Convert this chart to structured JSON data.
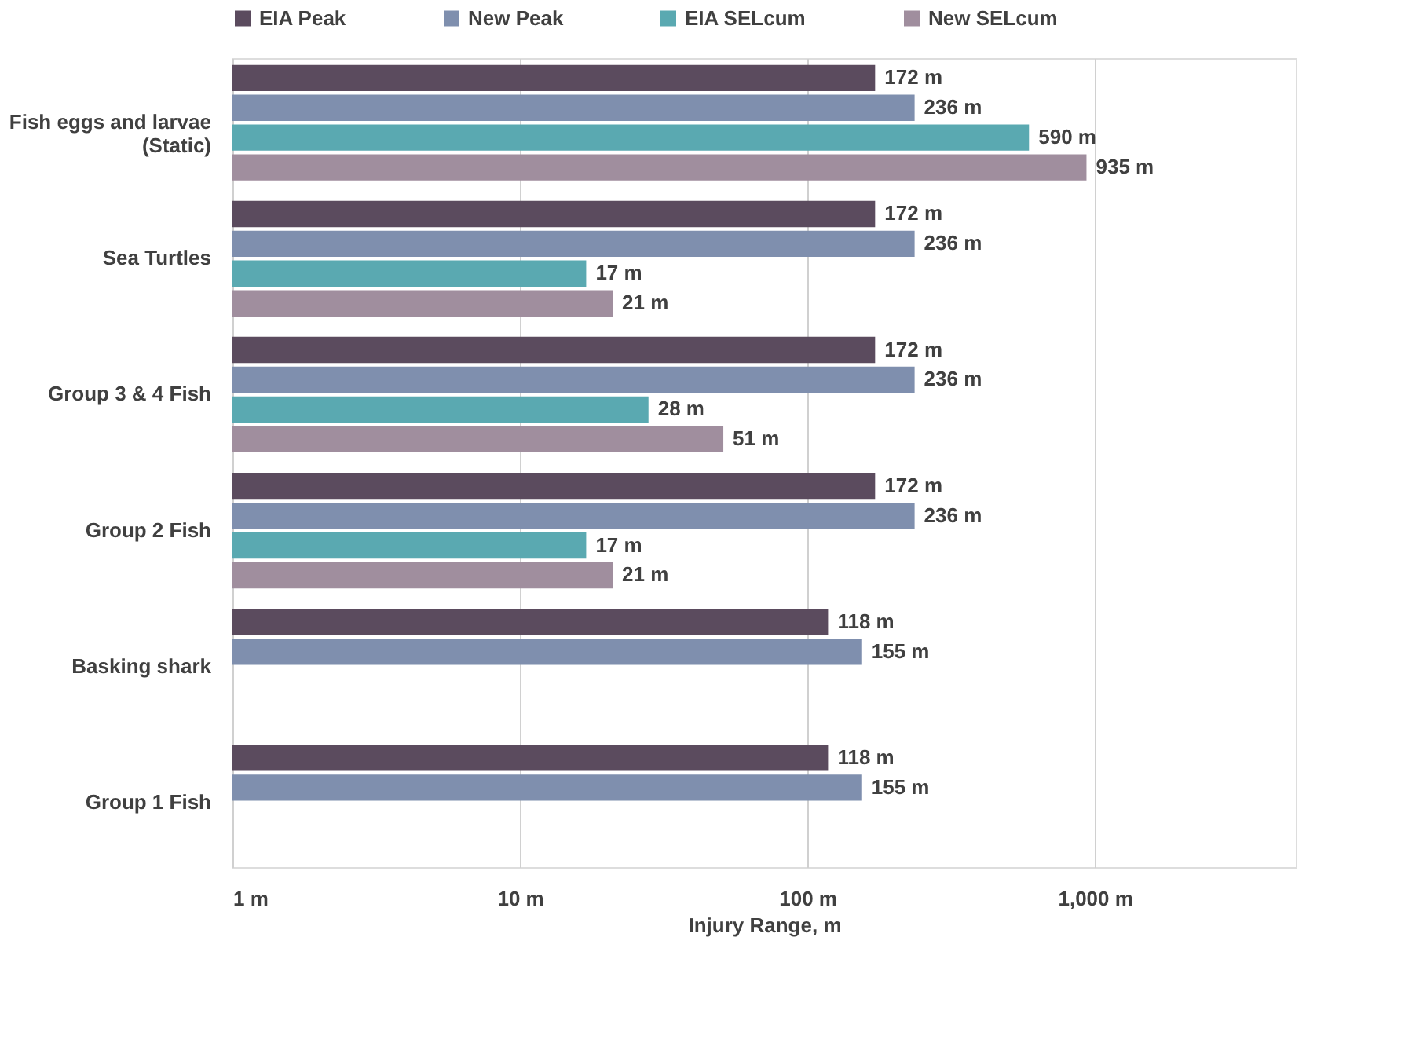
{
  "chart_data": {
    "type": "bar",
    "orientation": "horizontal",
    "xlabel": "Injury  Range, m",
    "log": "x",
    "categories": [
      "Fish eggs and larvae (Static)",
      "Sea Turtles",
      "Group 3 & 4 Fish",
      "Group 2 Fish",
      "Basking shark",
      "Group 1 Fish"
    ],
    "series": [
      {
        "name": "EIA Peak",
        "color": "#5b4b5e",
        "values": [
          172,
          172,
          172,
          172,
          118,
          118
        ],
        "value_labels": [
          "172 m",
          "172 m",
          "172 m",
          "172 m",
          "118 m",
          "118 m"
        ]
      },
      {
        "name": "New Peak",
        "color": "#7f8fae",
        "values": [
          236,
          236,
          236,
          236,
          155,
          155
        ],
        "value_labels": [
          "236 m",
          "236 m",
          "236 m",
          "236 m",
          "155 m",
          "155 m"
        ]
      },
      {
        "name": "EIA SELcum",
        "color": "#5aa9b1",
        "values": [
          590,
          17,
          28,
          17,
          null,
          null
        ],
        "value_labels": [
          "590 m",
          "17 m",
          "28 m",
          "17 m",
          null,
          null
        ]
      },
      {
        "name": "New SELcum",
        "color": "#a08e9e",
        "values": [
          935,
          21,
          51,
          21,
          null,
          null
        ],
        "value_labels": [
          "935 m",
          "21 m",
          "51 m",
          "21 m",
          null,
          null
        ]
      }
    ],
    "xlim": [
      1,
      5000
    ],
    "xticks": [
      {
        "value": 1,
        "label": "1 m"
      },
      {
        "value": 10,
        "label": "10 m"
      },
      {
        "value": 100,
        "label": "100 m"
      },
      {
        "value": 1000,
        "label": "1,000 m"
      }
    ],
    "grid": "x",
    "legend": "top"
  }
}
